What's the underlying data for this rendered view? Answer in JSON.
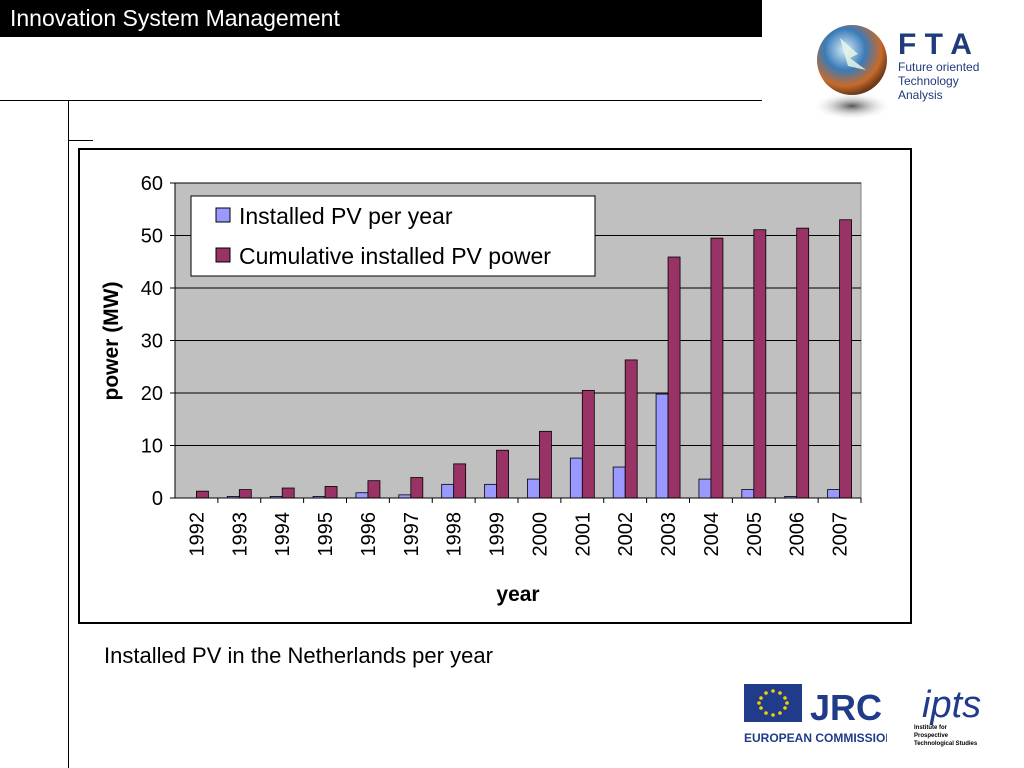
{
  "header": {
    "title": "Innovation System Management"
  },
  "logos": {
    "fta": {
      "letters": "F T A",
      "line1": "Future oriented",
      "line2": "Technology",
      "line3": "Analysis"
    },
    "jrc": {
      "name": "JRC",
      "sub": "EUROPEAN COMMISSION"
    },
    "ipts": {
      "mark": "ipts",
      "line1": "Institute for",
      "line2": "Prospective",
      "line3": "Technological Studies"
    }
  },
  "caption": "Installed PV in the Netherlands per year",
  "chart_data": {
    "type": "bar",
    "categories": [
      "1992",
      "1993",
      "1994",
      "1995",
      "1996",
      "1997",
      "1998",
      "1999",
      "2000",
      "2001",
      "2002",
      "2003",
      "2004",
      "2005",
      "2006",
      "2007"
    ],
    "series": [
      {
        "name": "Installed PV per year",
        "color": "#9999ff",
        "values": [
          0,
          0.3,
          0.3,
          0.3,
          1.0,
          0.6,
          2.6,
          2.6,
          3.6,
          7.6,
          5.9,
          19.8,
          3.6,
          1.6,
          0.3,
          1.6
        ]
      },
      {
        "name": "Cumulative installed PV power",
        "color": "#993366",
        "values": [
          1.3,
          1.6,
          1.9,
          2.2,
          3.3,
          3.9,
          6.5,
          9.1,
          12.7,
          20.5,
          26.3,
          45.9,
          49.5,
          51.1,
          51.4,
          53.0
        ]
      }
    ],
    "xlabel": "year",
    "ylabel": "power (MW)",
    "ylim": [
      0,
      60
    ],
    "yticks": [
      0,
      10,
      20,
      30,
      40,
      50,
      60
    ],
    "plot_background": "#c0c0c0",
    "grid": true,
    "legend_position": "top-left"
  }
}
